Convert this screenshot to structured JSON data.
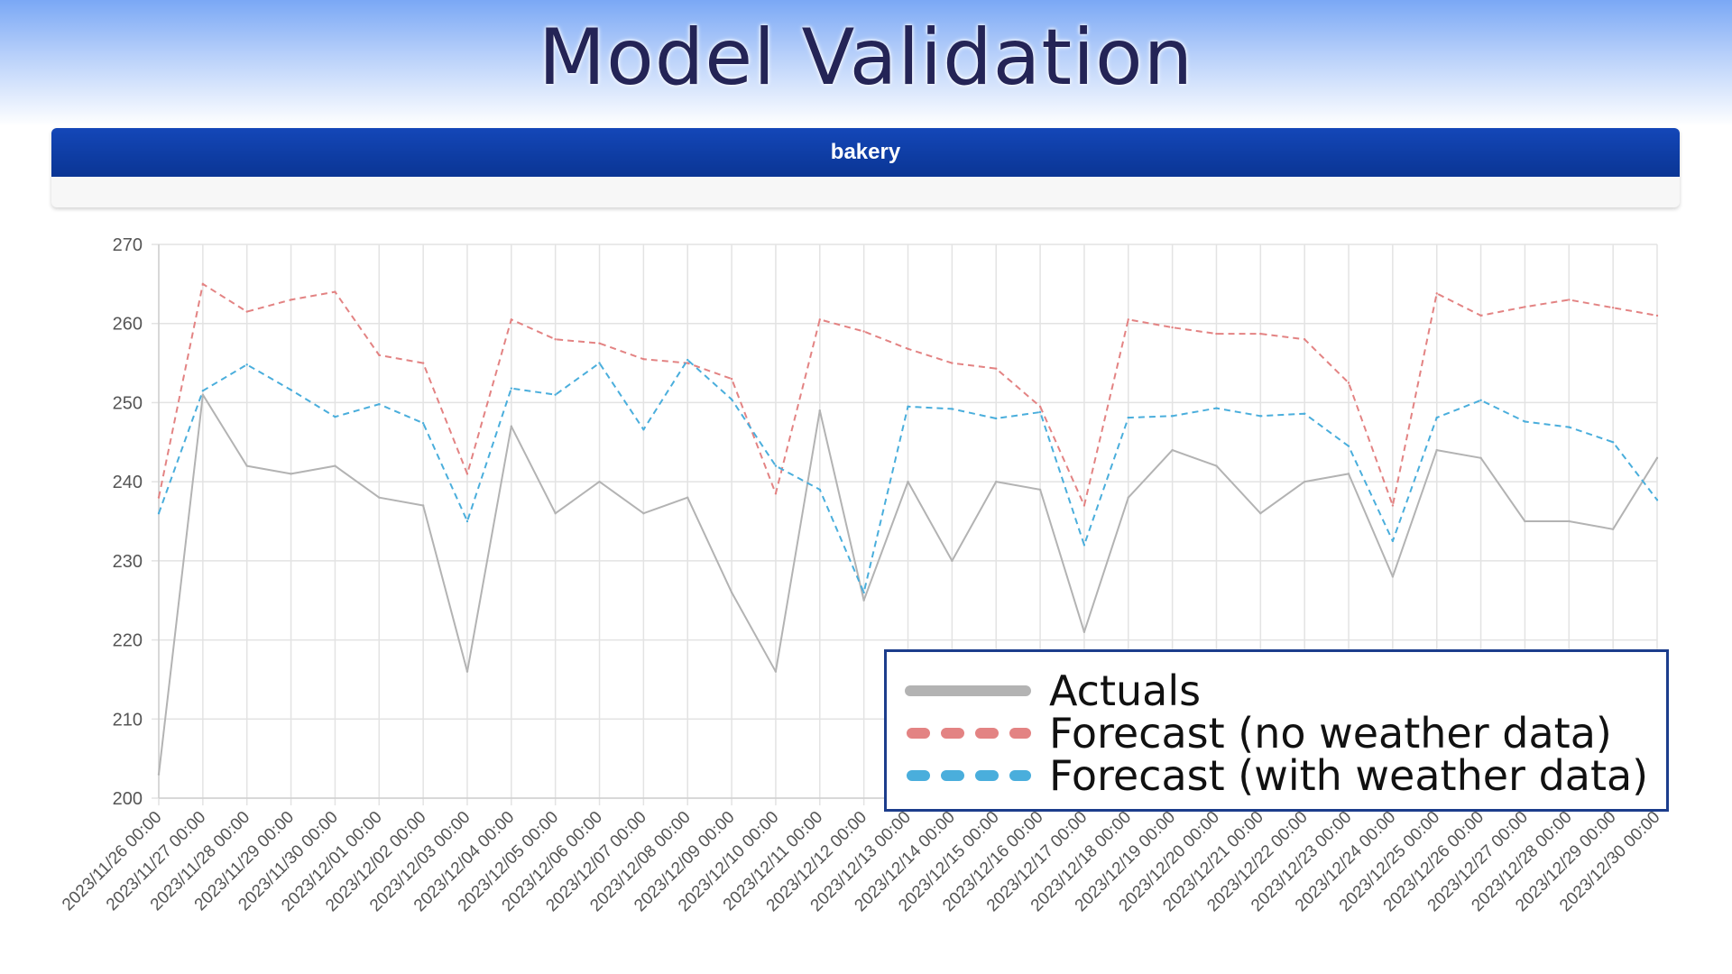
{
  "page": {
    "title": "Model Validation"
  },
  "panel": {
    "header": "bakery"
  },
  "colors": {
    "actuals": "#b3b3b3",
    "no_weather": "#e38383",
    "with_weather": "#4aaedc",
    "grid": "#e3e3e3",
    "legend_border": "#1c3d8c"
  },
  "chart_data": {
    "type": "line",
    "title": "bakery",
    "xlabel": "",
    "ylabel": "",
    "ylim": [
      200,
      270
    ],
    "yticks": [
      200,
      210,
      220,
      230,
      240,
      250,
      260,
      270
    ],
    "grid": true,
    "legend_position": "bottom-right",
    "categories": [
      "2023/11/26 00:00",
      "2023/11/27 00:00",
      "2023/11/28 00:00",
      "2023/11/29 00:00",
      "2023/11/30 00:00",
      "2023/12/01 00:00",
      "2023/12/02 00:00",
      "2023/12/03 00:00",
      "2023/12/04 00:00",
      "2023/12/05 00:00",
      "2023/12/06 00:00",
      "2023/12/07 00:00",
      "2023/12/08 00:00",
      "2023/12/09 00:00",
      "2023/12/10 00:00",
      "2023/12/11 00:00",
      "2023/12/12 00:00",
      "2023/12/13 00:00",
      "2023/12/14 00:00",
      "2023/12/15 00:00",
      "2023/12/16 00:00",
      "2023/12/17 00:00",
      "2023/12/18 00:00",
      "2023/12/19 00:00",
      "2023/12/20 00:00",
      "2023/12/21 00:00",
      "2023/12/22 00:00",
      "2023/12/23 00:00",
      "2023/12/24 00:00",
      "2023/12/25 00:00",
      "2023/12/26 00:00",
      "2023/12/27 00:00",
      "2023/12/28 00:00",
      "2023/12/29 00:00",
      "2023/12/30 00:00"
    ],
    "series": [
      {
        "name": "Actuals",
        "style": "solid",
        "values": [
          203,
          251,
          242,
          241,
          242,
          238,
          237,
          216,
          247,
          236,
          240,
          236,
          238,
          226,
          216,
          249,
          225,
          240,
          230,
          240,
          239,
          221,
          238,
          244,
          242,
          236,
          240,
          241,
          228,
          244,
          243,
          235,
          235,
          234,
          243
        ]
      },
      {
        "name": "Forecast (no weather data)",
        "style": "dashed",
        "values": [
          238,
          265,
          261.5,
          263,
          264,
          256,
          255,
          241,
          260.5,
          258,
          257.5,
          255.5,
          255,
          253,
          238.5,
          260.5,
          259,
          256.8,
          255,
          254.3,
          249.5,
          237,
          260.5,
          259.5,
          258.7,
          258.7,
          258,
          252.5,
          237,
          263.8,
          261,
          262.1,
          263,
          262,
          261
        ]
      },
      {
        "name": "Forecast (with weather data)",
        "style": "dashed",
        "values": [
          236,
          251.5,
          254.8,
          251.6,
          248.2,
          249.8,
          247.4,
          235,
          251.8,
          251,
          255,
          246.6,
          255.4,
          250.4,
          242,
          239,
          226,
          249.5,
          249.2,
          248,
          248.8,
          232,
          248.1,
          248.3,
          249.3,
          248.3,
          248.6,
          244.5,
          232.5,
          248.1,
          250.3,
          247.6,
          246.9,
          245,
          237.7
        ]
      }
    ]
  }
}
